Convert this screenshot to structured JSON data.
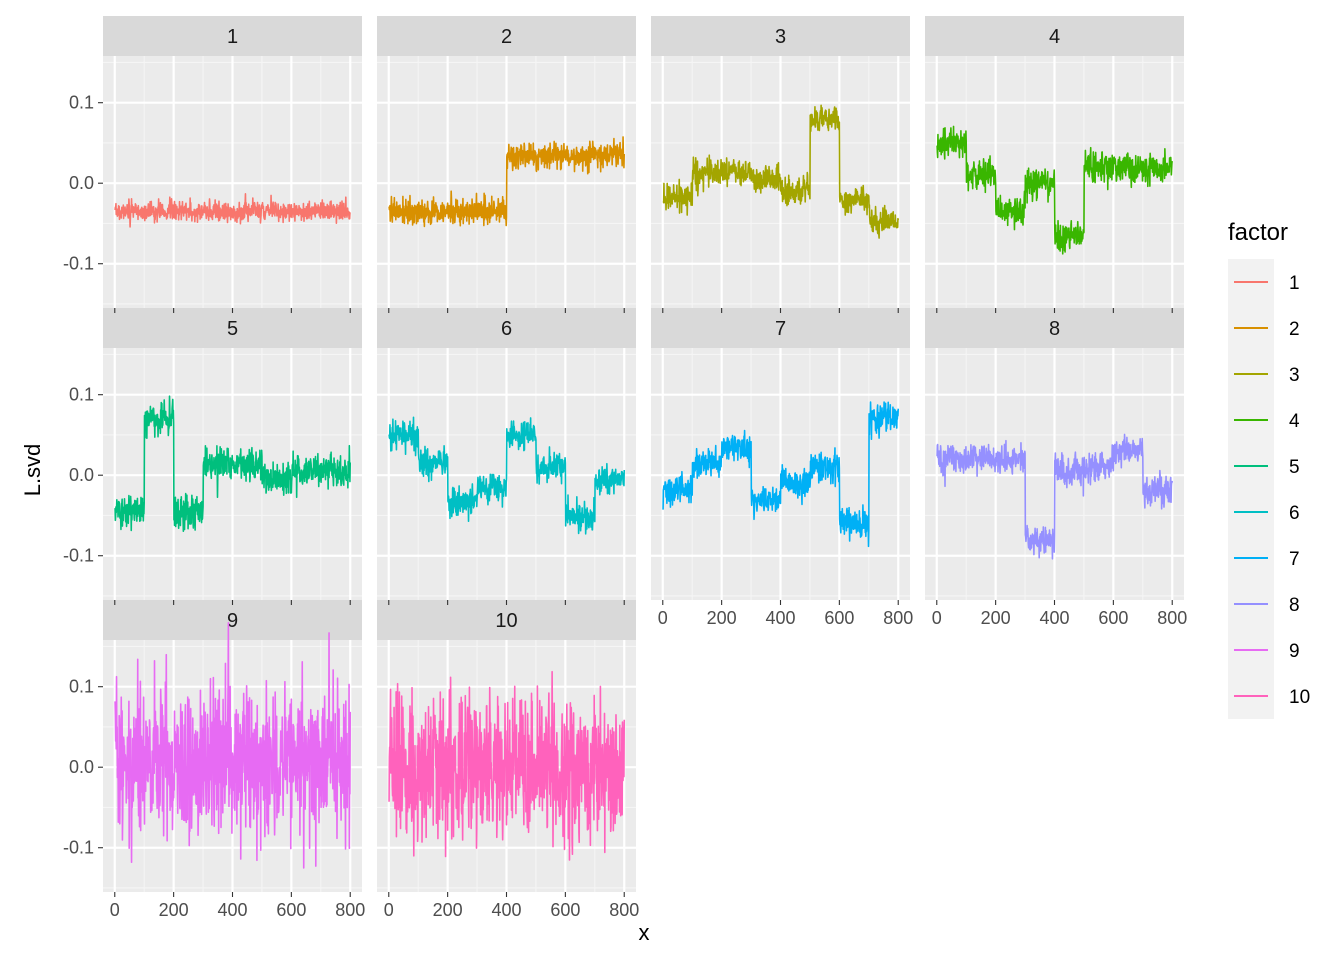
{
  "chart_data": {
    "type": "line",
    "xlabel": "x",
    "ylabel": "L.svd",
    "xlim": [
      -40,
      840
    ],
    "ylim": [
      -0.155,
      0.158
    ],
    "x_ticks": [
      0,
      200,
      400,
      600,
      800
    ],
    "x_tick_labels": [
      "0",
      "200",
      "400",
      "600",
      "800"
    ],
    "y_ticks": [
      -0.1,
      0.0,
      0.1
    ],
    "y_tick_labels": [
      "-0.1",
      "0.0",
      "0.1"
    ],
    "grid": true,
    "facet_layout": {
      "rows": 3,
      "cols": 4
    },
    "legend": {
      "title": "factor",
      "placement": "right"
    },
    "n_points": 800,
    "series": [
      {
        "name": "1",
        "color": "#F8766D",
        "noise": 0.006,
        "segments": [
          [
            0,
            800,
            -0.035
          ]
        ]
      },
      {
        "name": "2",
        "color": "#D89000",
        "noise": 0.008,
        "segments": [
          [
            0,
            400,
            -0.035
          ],
          [
            400,
            800,
            0.035
          ]
        ]
      },
      {
        "name": "3",
        "color": "#A3A500",
        "noise": 0.008,
        "segments": [
          [
            0,
            100,
            -0.02
          ],
          [
            100,
            300,
            0.015
          ],
          [
            300,
            400,
            0.005
          ],
          [
            400,
            500,
            -0.01
          ],
          [
            500,
            600,
            0.08
          ],
          [
            600,
            700,
            -0.02
          ],
          [
            700,
            800,
            -0.05
          ]
        ]
      },
      {
        "name": "4",
        "color": "#39B600",
        "noise": 0.009,
        "segments": [
          [
            0,
            100,
            0.05
          ],
          [
            100,
            200,
            0.01
          ],
          [
            200,
            300,
            -0.035
          ],
          [
            300,
            400,
            0.0
          ],
          [
            400,
            500,
            -0.065
          ],
          [
            500,
            800,
            0.02
          ]
        ]
      },
      {
        "name": "5",
        "color": "#00BF7D",
        "noise": 0.01,
        "segments": [
          [
            0,
            100,
            -0.045
          ],
          [
            100,
            200,
            0.07
          ],
          [
            200,
            300,
            -0.045
          ],
          [
            300,
            500,
            0.015
          ],
          [
            500,
            600,
            -0.005
          ],
          [
            600,
            800,
            0.005
          ]
        ]
      },
      {
        "name": "6",
        "color": "#00BFC4",
        "noise": 0.009,
        "segments": [
          [
            0,
            100,
            0.05
          ],
          [
            100,
            200,
            0.015
          ],
          [
            200,
            300,
            -0.035
          ],
          [
            300,
            400,
            -0.015
          ],
          [
            400,
            500,
            0.05
          ],
          [
            500,
            600,
            0.01
          ],
          [
            600,
            700,
            -0.05
          ],
          [
            700,
            800,
            -0.005
          ]
        ]
      },
      {
        "name": "7",
        "color": "#00B0F6",
        "noise": 0.009,
        "segments": [
          [
            0,
            100,
            -0.02
          ],
          [
            100,
            200,
            0.015
          ],
          [
            200,
            300,
            0.035
          ],
          [
            300,
            400,
            -0.03
          ],
          [
            400,
            500,
            -0.01
          ],
          [
            500,
            600,
            0.01
          ],
          [
            600,
            700,
            -0.06
          ],
          [
            700,
            800,
            0.07
          ]
        ]
      },
      {
        "name": "8",
        "color": "#9590FF",
        "noise": 0.009,
        "segments": [
          [
            0,
            300,
            0.02
          ],
          [
            300,
            400,
            -0.08
          ],
          [
            400,
            500,
            0.005
          ],
          [
            500,
            600,
            0.01
          ],
          [
            600,
            700,
            0.03
          ],
          [
            700,
            800,
            -0.02
          ]
        ]
      },
      {
        "name": "9",
        "color": "#E76BF3",
        "noise": 0.045,
        "segments": [
          [
            0,
            800,
            0.005
          ]
        ]
      },
      {
        "name": "10",
        "color": "#FF62BC",
        "noise": 0.045,
        "segments": [
          [
            0,
            800,
            0.0
          ]
        ]
      }
    ]
  }
}
